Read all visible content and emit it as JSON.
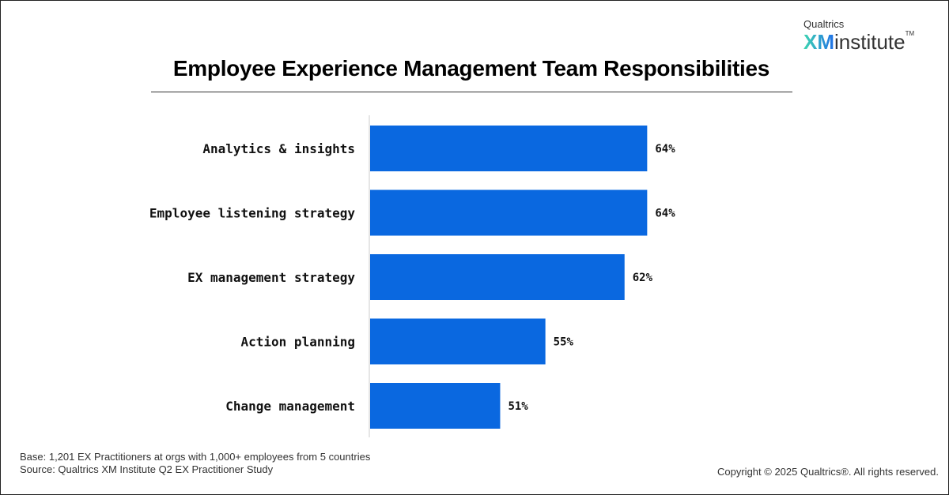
{
  "brand": {
    "line1": "Qualtrics",
    "xm": "XM",
    "institute": "institute",
    "tm": "TM"
  },
  "chart_data": {
    "type": "bar",
    "orientation": "horizontal",
    "title": "Employee Experience Management Team Responsibilities",
    "categories": [
      "Analytics & insights",
      "Employee listening strategy",
      "EX management strategy",
      "Action planning",
      "Change management"
    ],
    "values": [
      64,
      64,
      62,
      55,
      51
    ],
    "value_labels": [
      "64%",
      "64%",
      "62%",
      "55%",
      "51%"
    ],
    "bar_color": "#0a68e0",
    "grid": false
  },
  "footer": {
    "base": "Base: 1,201 EX Practitioners at orgs with 1,000+ employees from 5 countries",
    "source": "Source: Qualtrics XM Institute Q2 EX Practitioner Study",
    "copyright": "Copyright © 2025 Qualtrics®. All rights reserved."
  }
}
